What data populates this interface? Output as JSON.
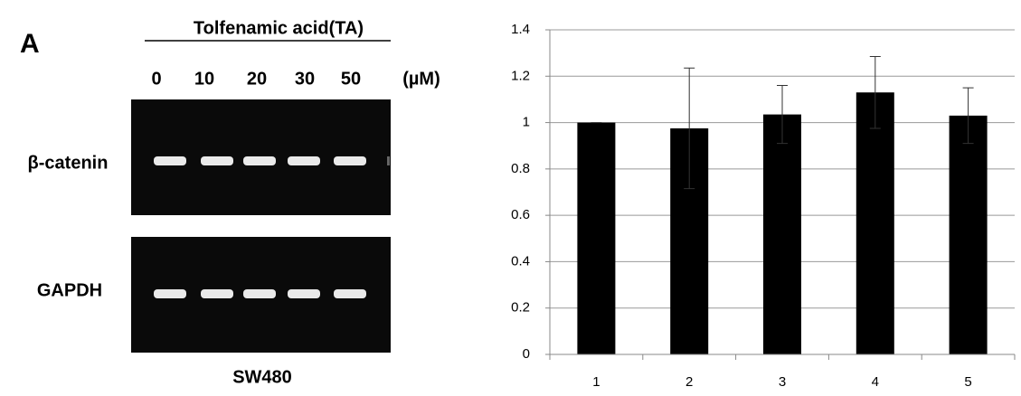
{
  "panel_label": "A",
  "gel": {
    "treatment": "Tolfenamic acid(TA)",
    "doses": [
      "0",
      "10",
      "20",
      "30",
      "50"
    ],
    "unit": "(µM)",
    "rows": [
      "β-catenin",
      "GAPDH"
    ],
    "cell_line": "SW480"
  },
  "chart_data": {
    "type": "bar",
    "categories": [
      "1",
      "2",
      "3",
      "4",
      "5"
    ],
    "values": [
      1,
      0.975,
      1.035,
      1.13,
      1.03
    ],
    "errors": [
      0,
      0.26,
      0.125,
      0.155,
      0.12
    ],
    "color": "#000000",
    "ylim": [
      0,
      1.4
    ],
    "yticks": [
      0,
      0.2,
      0.4,
      0.6,
      0.8,
      1,
      1.2,
      1.4
    ],
    "grid": true
  }
}
